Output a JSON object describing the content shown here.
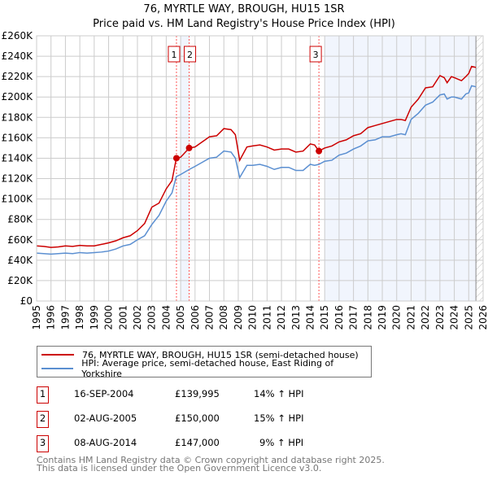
{
  "chart_data": {
    "type": "line",
    "title": "76, MYRTLE WAY, BROUGH, HU15 1SR",
    "subtitle": "Price paid vs. HM Land Registry's House Price Index (HPI)",
    "xlim": [
      1995,
      2026
    ],
    "ylim": [
      0,
      260000
    ],
    "x_ticks": [
      "1995",
      "1996",
      "1997",
      "1998",
      "1999",
      "2000",
      "2001",
      "2002",
      "2003",
      "2004",
      "2005",
      "2006",
      "2007",
      "2008",
      "2009",
      "2010",
      "2011",
      "2012",
      "2013",
      "2014",
      "2015",
      "2016",
      "2017",
      "2018",
      "2019",
      "2020",
      "2021",
      "2022",
      "2023",
      "2024",
      "2025",
      "2026"
    ],
    "y_ticks": [
      "£0",
      "£20K",
      "£40K",
      "£60K",
      "£80K",
      "£100K",
      "£120K",
      "£140K",
      "£160K",
      "£180K",
      "£200K",
      "£220K",
      "£240K",
      "£260K"
    ],
    "grid": true,
    "series": [
      {
        "name": "76, MYRTLE WAY, BROUGH, HU15 1SR (semi-detached house)",
        "color": "#cc0000",
        "x": [
          1995,
          1995.5,
          1996,
          1996.5,
          1997,
          1997.5,
          1998,
          1998.5,
          1999,
          1999.5,
          2000,
          2000.5,
          2001,
          2001.5,
          2002,
          2002.5,
          2003,
          2003.5,
          2004,
          2004.4,
          2004.7,
          2005,
          2005.6,
          2006,
          2006.5,
          2007,
          2007.5,
          2008,
          2008.5,
          2008.8,
          2009.1,
          2009.6,
          2010,
          2010.5,
          2011,
          2011.5,
          2012,
          2012.5,
          2013,
          2013.5,
          2014,
          2014.3,
          2014.6,
          2015,
          2015.5,
          2016,
          2016.5,
          2017,
          2017.5,
          2018,
          2018.5,
          2019,
          2019.5,
          2020,
          2020.3,
          2020.6,
          2021,
          2021.5,
          2022,
          2022.5,
          2023,
          2023.3,
          2023.5,
          2023.8,
          2024,
          2024.5,
          2024.8,
          2025,
          2025.2,
          2025.5
        ],
        "y": [
          54,
          53.5,
          52.5,
          53,
          54,
          53.5,
          54.5,
          54,
          54,
          55.5,
          57,
          59,
          62,
          64,
          69,
          76,
          92,
          96,
          110,
          118,
          140,
          141,
          150,
          151,
          156,
          161,
          162,
          169,
          168,
          163,
          138,
          151,
          152,
          153,
          151,
          148,
          149,
          149,
          146,
          147,
          154,
          153,
          147,
          150,
          152,
          156,
          158,
          162,
          164,
          170,
          172,
          174,
          176,
          178,
          178,
          177,
          190,
          198,
          209,
          210,
          221,
          219,
          214,
          220,
          219,
          216,
          220,
          223,
          230,
          229
        ]
      },
      {
        "name": "HPI: Average price, semi-detached house, East Riding of Yorkshire",
        "color": "#5b8fd1",
        "x": [
          1995,
          1995.5,
          1996,
          1996.5,
          1997,
          1997.5,
          1998,
          1998.5,
          1999,
          1999.5,
          2000,
          2000.5,
          2001,
          2001.5,
          2002,
          2002.5,
          2003,
          2003.5,
          2004,
          2004.4,
          2004.7,
          2005,
          2005.6,
          2006,
          2006.5,
          2007,
          2007.5,
          2008,
          2008.5,
          2008.8,
          2009.1,
          2009.6,
          2010,
          2010.5,
          2011,
          2011.5,
          2012,
          2012.5,
          2013,
          2013.5,
          2014,
          2014.3,
          2014.6,
          2015,
          2015.5,
          2016,
          2016.5,
          2017,
          2017.5,
          2018,
          2018.5,
          2019,
          2019.5,
          2020,
          2020.3,
          2020.6,
          2021,
          2021.5,
          2022,
          2022.5,
          2023,
          2023.3,
          2023.5,
          2023.8,
          2024,
          2024.5,
          2024.8,
          2025,
          2025.2,
          2025.5
        ],
        "y": [
          47,
          46.5,
          46,
          46.5,
          47,
          46.5,
          47.5,
          47,
          47.5,
          48,
          49,
          51,
          54,
          55.5,
          60,
          64,
          75,
          84,
          98,
          106,
          122,
          124,
          129,
          132,
          136,
          140,
          141,
          147,
          146,
          140,
          121,
          133,
          133,
          134,
          132,
          129,
          131,
          131,
          128,
          128,
          134,
          133,
          134,
          137,
          138,
          143,
          145,
          149,
          152,
          157,
          158,
          161,
          161,
          163,
          164,
          163,
          178,
          184,
          192,
          195,
          202,
          203,
          198,
          200,
          200,
          198,
          203,
          204,
          211,
          210
        ]
      }
    ],
    "sales": [
      {
        "label": "1",
        "x": 2004.71,
        "y": 139995,
        "date": "16-SEP-2004",
        "price": "£139,995",
        "hpi": "14% ↑ HPI"
      },
      {
        "label": "2",
        "x": 2005.59,
        "y": 150000,
        "date": "02-AUG-2005",
        "price": "£150,000",
        "hpi": "15% ↑ HPI"
      },
      {
        "label": "3",
        "x": 2014.6,
        "y": 147000,
        "date": "08-AUG-2014",
        "price": "£147,000",
        "hpi": "9% ↑ HPI"
      }
    ],
    "footer_line1": "Contains HM Land Registry data © Crown copyright and database right 2025.",
    "footer_line2": "This data is licensed under the Open Government Licence v3.0."
  }
}
